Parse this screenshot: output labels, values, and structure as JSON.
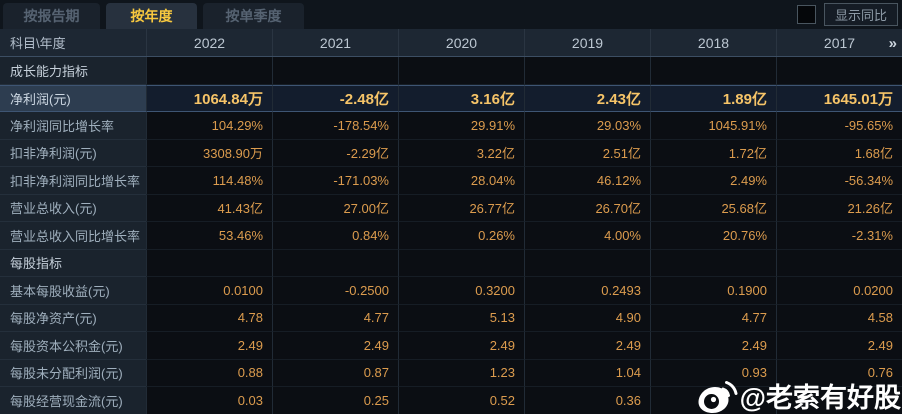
{
  "tabs": [
    {
      "label": "按报告期",
      "active": false
    },
    {
      "label": "按年度",
      "active": true
    },
    {
      "label": "按单季度",
      "active": false
    }
  ],
  "controls": {
    "show_yoy_label": "显示同比",
    "checkbox_checked": false
  },
  "table": {
    "corner_header": "科目\\年度",
    "years": [
      "2022",
      "2021",
      "2020",
      "2019",
      "2018",
      "2017"
    ],
    "more_icon": "»",
    "rows": [
      {
        "type": "section",
        "label": "成长能力指标",
        "values": [
          "",
          "",
          "",
          "",
          "",
          ""
        ]
      },
      {
        "type": "data",
        "label": "净利润(元)",
        "highlight": true,
        "values": [
          "1064.84万",
          "-2.48亿",
          "3.16亿",
          "2.43亿",
          "1.89亿",
          "1645.01万"
        ]
      },
      {
        "type": "data",
        "label": "净利润同比增长率",
        "values": [
          "104.29%",
          "-178.54%",
          "29.91%",
          "29.03%",
          "1045.91%",
          "-95.65%"
        ]
      },
      {
        "type": "data",
        "label": "扣非净利润(元)",
        "values": [
          "3308.90万",
          "-2.29亿",
          "3.22亿",
          "2.51亿",
          "1.72亿",
          "1.68亿"
        ]
      },
      {
        "type": "data",
        "label": "扣非净利润同比增长率",
        "values": [
          "114.48%",
          "-171.03%",
          "28.04%",
          "46.12%",
          "2.49%",
          "-56.34%"
        ]
      },
      {
        "type": "data",
        "label": "营业总收入(元)",
        "values": [
          "41.43亿",
          "27.00亿",
          "26.77亿",
          "26.70亿",
          "25.68亿",
          "21.26亿"
        ]
      },
      {
        "type": "data",
        "label": "营业总收入同比增长率",
        "values": [
          "53.46%",
          "0.84%",
          "0.26%",
          "4.00%",
          "20.76%",
          "-2.31%"
        ]
      },
      {
        "type": "section",
        "label": "每股指标",
        "values": [
          "",
          "",
          "",
          "",
          "",
          ""
        ]
      },
      {
        "type": "data",
        "label": "基本每股收益(元)",
        "values": [
          "0.0100",
          "-0.2500",
          "0.3200",
          "0.2493",
          "0.1900",
          "0.0200"
        ]
      },
      {
        "type": "data",
        "label": "每股净资产(元)",
        "values": [
          "4.78",
          "4.77",
          "5.13",
          "4.90",
          "4.77",
          "4.58"
        ]
      },
      {
        "type": "data",
        "label": "每股资本公积金(元)",
        "values": [
          "2.49",
          "2.49",
          "2.49",
          "2.49",
          "2.49",
          "2.49"
        ]
      },
      {
        "type": "data",
        "label": "每股未分配利润(元)",
        "values": [
          "0.88",
          "0.87",
          "1.23",
          "1.04",
          "0.93",
          "0.76"
        ]
      },
      {
        "type": "data",
        "label": "每股经营现金流(元)",
        "values": [
          "0.03",
          "0.25",
          "0.52",
          "0.36",
          "",
          ""
        ]
      }
    ]
  },
  "watermark": {
    "text": "@老索有好股",
    "icon": "weibo-logo"
  },
  "colors": {
    "background": "#0a0d11",
    "tab_active_gold": "#f8c93f",
    "value_orange": "#dc9c4e",
    "highlight_gold": "#f6c468",
    "highlight_row_bg": "#131d2d",
    "label_column_bg": "#1a232d",
    "header_row_bg": "#1d2733",
    "watermark_white": "#ffffff"
  }
}
